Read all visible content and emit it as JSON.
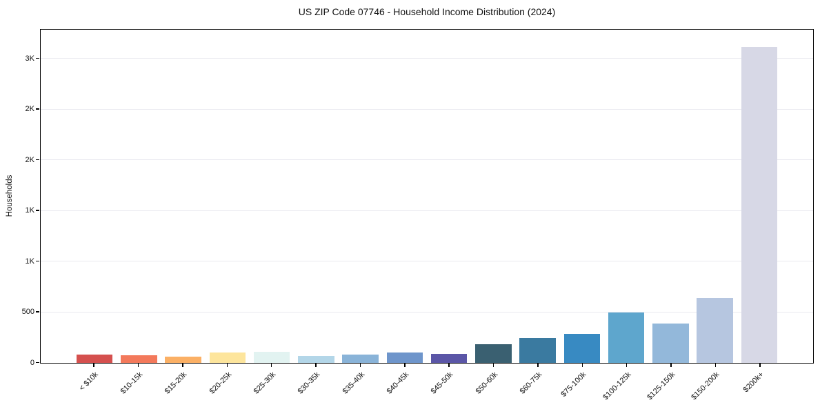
{
  "title": "US ZIP Code 07746 - Household Income Distribution (2024)",
  "chart_data": {
    "type": "bar",
    "title": "US ZIP Code 07746 - Household Income Distribution (2024)",
    "xlabel": "",
    "ylabel": "Households",
    "grid": "horizontal",
    "legend": "none",
    "ylim": [
      0,
      3280
    ],
    "yticks": [
      {
        "value": 0,
        "label": "0"
      },
      {
        "value": 500,
        "label": "500"
      },
      {
        "value": 1000,
        "label": "1K"
      },
      {
        "value": 1500,
        "label": "1K"
      },
      {
        "value": 2000,
        "label": "2K"
      },
      {
        "value": 2500,
        "label": "2K"
      },
      {
        "value": 3000,
        "label": "3K"
      }
    ],
    "categories": [
      "< $10k",
      "$10-15k",
      "$15-20k",
      "$20-25k",
      "$25-30k",
      "$30-35k",
      "$35-40k",
      "$40-45k",
      "$45-50k",
      "$50-60k",
      "$60-75k",
      "$75-100k",
      "$100-125k",
      "$125-150k",
      "$150-200k",
      "$200k+"
    ],
    "values": [
      85,
      75,
      60,
      100,
      110,
      70,
      85,
      100,
      90,
      185,
      245,
      285,
      500,
      390,
      640,
      3120
    ],
    "bar_colors": [
      "#d5504e",
      "#f3795b",
      "#fbb065",
      "#fde59c",
      "#e2f3f1",
      "#b3d6e8",
      "#89b3d8",
      "#6e95cb",
      "#5b56a7",
      "#3a6071",
      "#3a7aa0",
      "#388ac2",
      "#5ea6cd",
      "#93b8da",
      "#b6c6e0",
      "#d7d8e6"
    ]
  }
}
